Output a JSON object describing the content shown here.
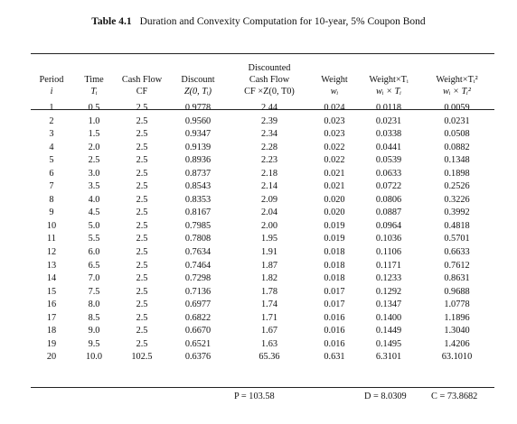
{
  "caption": {
    "number": "Table 4.1",
    "title": "Duration and Convexity Computation for 10-year, 5% Coupon Bond"
  },
  "headers": {
    "top": [
      "",
      "",
      "",
      "",
      "Discounted",
      "",
      "",
      ""
    ],
    "mid": [
      "Period",
      "Time",
      "Cash Flow",
      "Discount",
      "Cash Flow",
      "Weight",
      "Weight×Tᵢ",
      "Weight×Tᵢ²"
    ],
    "sub": [
      "i",
      "Tᵢ",
      "CF",
      "Z(0, Tᵢ)",
      "CF ×Z(0, T0)",
      "wᵢ",
      "wᵢ × Tᵢ",
      "wᵢ × Tᵢ²"
    ]
  },
  "rows": [
    [
      "1",
      "0.5",
      "2.5",
      "0.9778",
      "2.44",
      "0.024",
      "0.0118",
      "0.0059"
    ],
    [
      "2",
      "1.0",
      "2.5",
      "0.9560",
      "2.39",
      "0.023",
      "0.0231",
      "0.0231"
    ],
    [
      "3",
      "1.5",
      "2.5",
      "0.9347",
      "2.34",
      "0.023",
      "0.0338",
      "0.0508"
    ],
    [
      "4",
      "2.0",
      "2.5",
      "0.9139",
      "2.28",
      "0.022",
      "0.0441",
      "0.0882"
    ],
    [
      "5",
      "2.5",
      "2.5",
      "0.8936",
      "2.23",
      "0.022",
      "0.0539",
      "0.1348"
    ],
    [
      "6",
      "3.0",
      "2.5",
      "0.8737",
      "2.18",
      "0.021",
      "0.0633",
      "0.1898"
    ],
    [
      "7",
      "3.5",
      "2.5",
      "0.8543",
      "2.14",
      "0.021",
      "0.0722",
      "0.2526"
    ],
    [
      "8",
      "4.0",
      "2.5",
      "0.8353",
      "2.09",
      "0.020",
      "0.0806",
      "0.3226"
    ],
    [
      "9",
      "4.5",
      "2.5",
      "0.8167",
      "2.04",
      "0.020",
      "0.0887",
      "0.3992"
    ],
    [
      "10",
      "5.0",
      "2.5",
      "0.7985",
      "2.00",
      "0.019",
      "0.0964",
      "0.4818"
    ],
    [
      "11",
      "5.5",
      "2.5",
      "0.7808",
      "1.95",
      "0.019",
      "0.1036",
      "0.5701"
    ],
    [
      "12",
      "6.0",
      "2.5",
      "0.7634",
      "1.91",
      "0.018",
      "0.1106",
      "0.6633"
    ],
    [
      "13",
      "6.5",
      "2.5",
      "0.7464",
      "1.87",
      "0.018",
      "0.1171",
      "0.7612"
    ],
    [
      "14",
      "7.0",
      "2.5",
      "0.7298",
      "1.82",
      "0.018",
      "0.1233",
      "0.8631"
    ],
    [
      "15",
      "7.5",
      "2.5",
      "0.7136",
      "1.78",
      "0.017",
      "0.1292",
      "0.9688"
    ],
    [
      "16",
      "8.0",
      "2.5",
      "0.6977",
      "1.74",
      "0.017",
      "0.1347",
      "1.0778"
    ],
    [
      "17",
      "8.5",
      "2.5",
      "0.6822",
      "1.71",
      "0.016",
      "0.1400",
      "1.1896"
    ],
    [
      "18",
      "9.0",
      "2.5",
      "0.6670",
      "1.67",
      "0.016",
      "0.1449",
      "1.3040"
    ],
    [
      "19",
      "9.5",
      "2.5",
      "0.6521",
      "1.63",
      "0.016",
      "0.1495",
      "1.4206"
    ],
    [
      "20",
      "10.0",
      "102.5",
      "0.6376",
      "65.36",
      "0.631",
      "6.3101",
      "63.1010"
    ]
  ],
  "summary": {
    "price": "P = 103.58",
    "duration": "D = 8.0309",
    "convexity": "C = 73.8682"
  }
}
